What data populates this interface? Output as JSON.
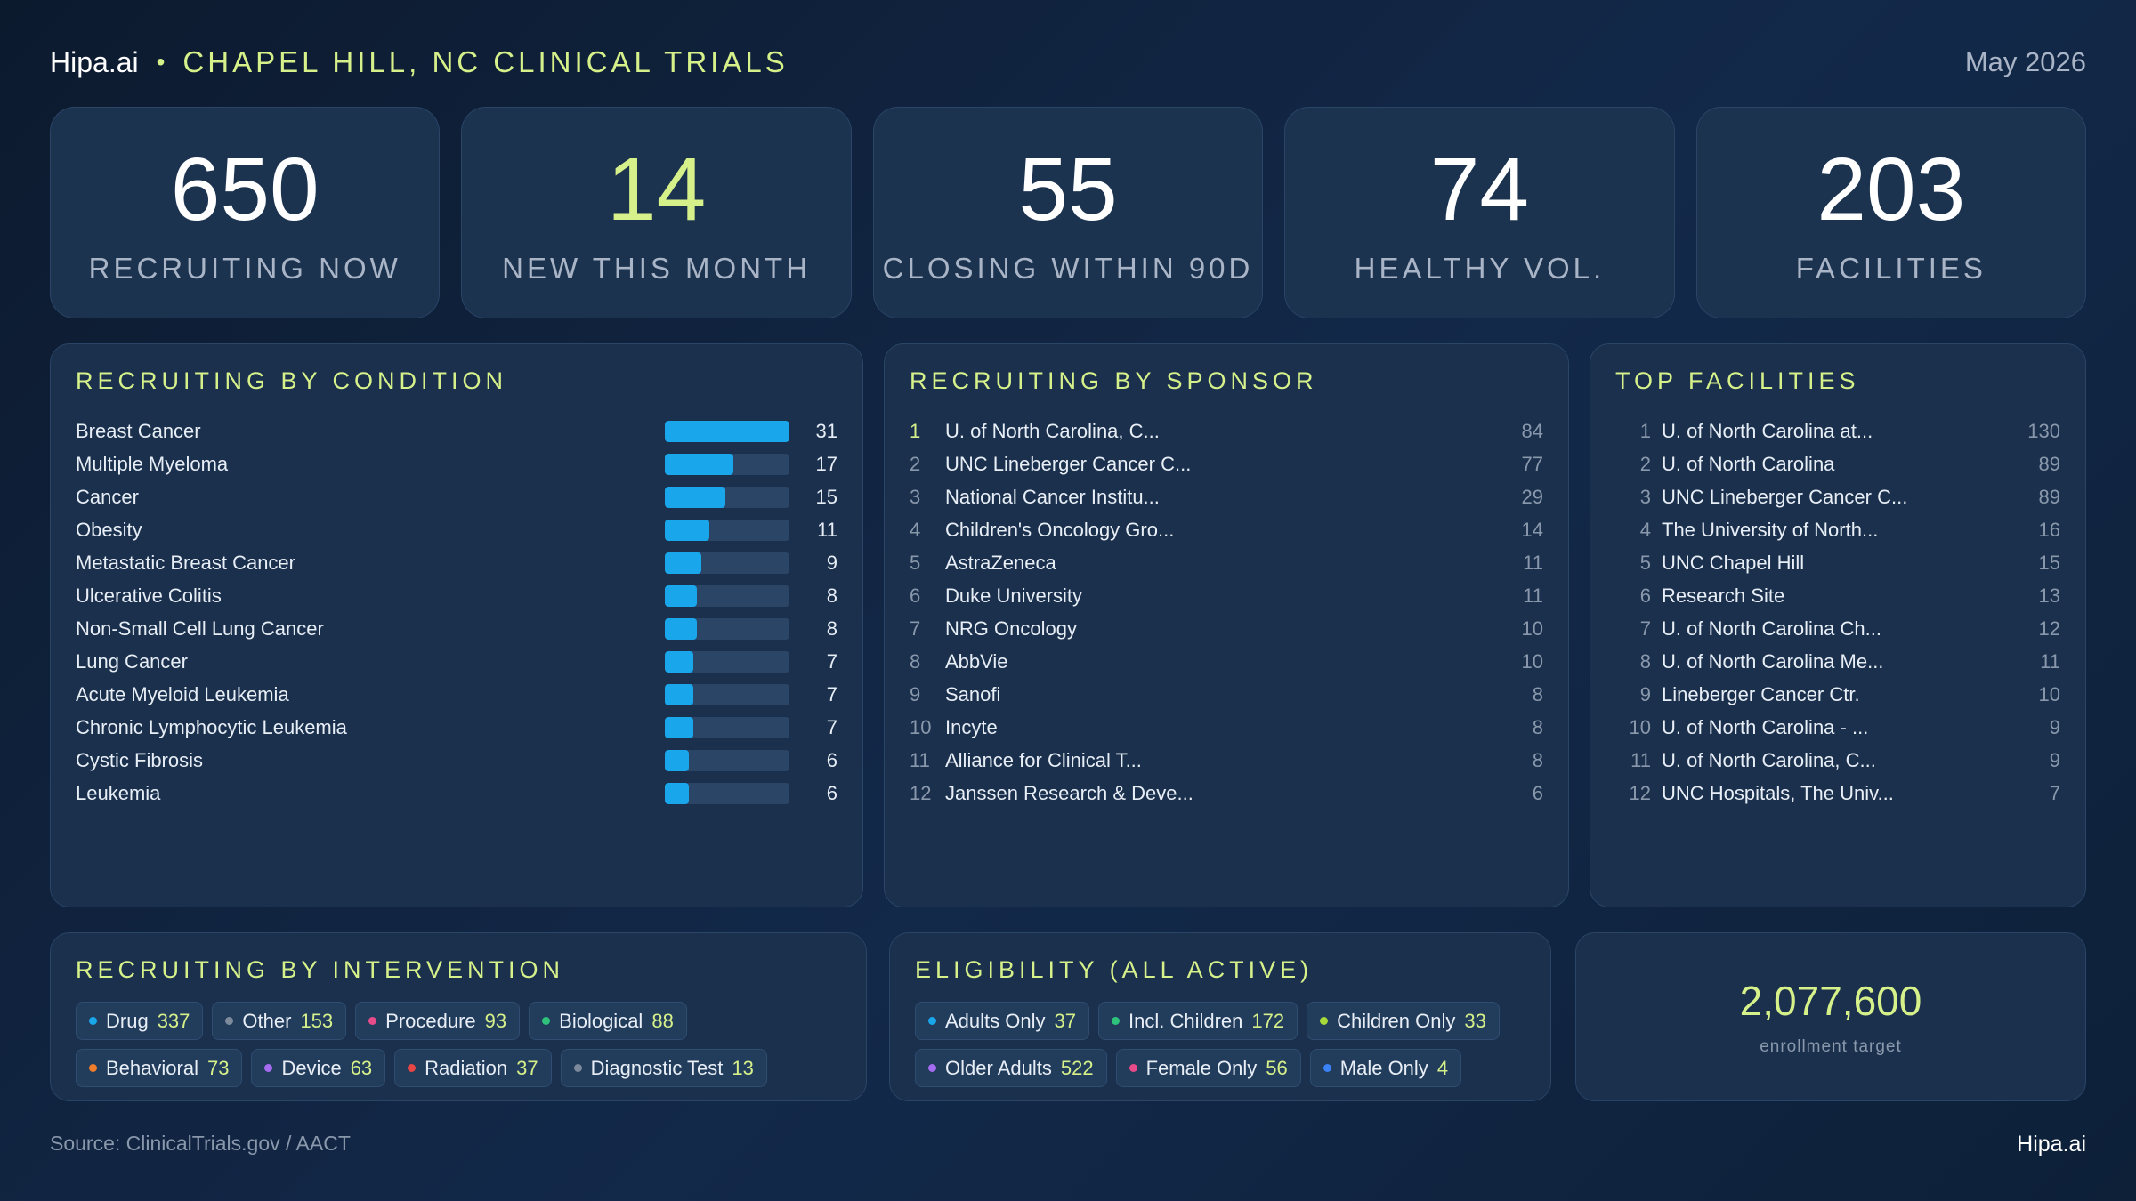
{
  "header": {
    "brand": "Hipa.ai",
    "separator": "•",
    "title": "CHAPEL HILL, NC CLINICAL TRIALS",
    "date": "May 2026"
  },
  "kpis": [
    {
      "value": "650",
      "label": "RECRUITING NOW"
    },
    {
      "value": "14",
      "label": "NEW THIS MONTH"
    },
    {
      "value": "55",
      "label": "CLOSING WITHIN 90D"
    },
    {
      "value": "74",
      "label": "HEALTHY VOL."
    },
    {
      "value": "203",
      "label": "FACILITIES"
    }
  ],
  "conditions": {
    "title": "RECRUITING BY CONDITION",
    "max": 31,
    "items": [
      {
        "name": "Breast Cancer",
        "value": 31
      },
      {
        "name": "Multiple Myeloma",
        "value": 17
      },
      {
        "name": "Cancer",
        "value": 15
      },
      {
        "name": "Obesity",
        "value": 11
      },
      {
        "name": "Metastatic Breast Cancer",
        "value": 9
      },
      {
        "name": "Ulcerative Colitis",
        "value": 8
      },
      {
        "name": "Non-Small Cell Lung Cancer",
        "value": 8
      },
      {
        "name": "Lung Cancer",
        "value": 7
      },
      {
        "name": "Acute Myeloid Leukemia",
        "value": 7
      },
      {
        "name": "Chronic Lymphocytic Leukemia",
        "value": 7
      },
      {
        "name": "Cystic Fibrosis",
        "value": 6
      },
      {
        "name": "Leukemia",
        "value": 6
      }
    ]
  },
  "sponsors": {
    "title": "RECRUITING BY SPONSOR",
    "items": [
      {
        "rank": "1",
        "name": "U. of North Carolina, C...",
        "value": "84"
      },
      {
        "rank": "2",
        "name": "UNC Lineberger Cancer C...",
        "value": "77"
      },
      {
        "rank": "3",
        "name": "National Cancer Institu...",
        "value": "29"
      },
      {
        "rank": "4",
        "name": "Children's Oncology Gro...",
        "value": "14"
      },
      {
        "rank": "5",
        "name": "AstraZeneca",
        "value": "11"
      },
      {
        "rank": "6",
        "name": "Duke University",
        "value": "11"
      },
      {
        "rank": "7",
        "name": "NRG Oncology",
        "value": "10"
      },
      {
        "rank": "8",
        "name": "AbbVie",
        "value": "10"
      },
      {
        "rank": "9",
        "name": "Sanofi",
        "value": "8"
      },
      {
        "rank": "10",
        "name": "Incyte",
        "value": "8"
      },
      {
        "rank": "11",
        "name": "Alliance for Clinical T...",
        "value": "8"
      },
      {
        "rank": "12",
        "name": "Janssen Research & Deve...",
        "value": "6"
      }
    ]
  },
  "facilities": {
    "title": "TOP FACILITIES",
    "items": [
      {
        "rank": "1",
        "name": "U. of North Carolina at...",
        "value": "130"
      },
      {
        "rank": "2",
        "name": "U. of North Carolina",
        "value": "89"
      },
      {
        "rank": "3",
        "name": "UNC Lineberger Cancer C...",
        "value": "89"
      },
      {
        "rank": "4",
        "name": "The University of North...",
        "value": "16"
      },
      {
        "rank": "5",
        "name": "UNC Chapel Hill",
        "value": "15"
      },
      {
        "rank": "6",
        "name": "Research Site",
        "value": "13"
      },
      {
        "rank": "7",
        "name": "U. of North Carolina Ch...",
        "value": "12"
      },
      {
        "rank": "8",
        "name": "U. of North Carolina Me...",
        "value": "11"
      },
      {
        "rank": "9",
        "name": "Lineberger Cancer Ctr.",
        "value": "10"
      },
      {
        "rank": "10",
        "name": "U. of North Carolina - ...",
        "value": "9"
      },
      {
        "rank": "11",
        "name": "U. of North Carolina, C...",
        "value": "9"
      },
      {
        "rank": "12",
        "name": "UNC Hospitals, The Univ...",
        "value": "7"
      }
    ]
  },
  "intervention": {
    "title": "RECRUITING BY INTERVENTION",
    "chips": [
      {
        "label": "Drug",
        "value": "337",
        "color": "#1aa6ea"
      },
      {
        "label": "Other",
        "value": "153",
        "color": "#7d8a9c"
      },
      {
        "label": "Procedure",
        "value": "93",
        "color": "#e84b8a"
      },
      {
        "label": "Biological",
        "value": "88",
        "color": "#2fc27a"
      },
      {
        "label": "Behavioral",
        "value": "73",
        "color": "#f07d2b"
      },
      {
        "label": "Device",
        "value": "63",
        "color": "#a56cf0"
      },
      {
        "label": "Radiation",
        "value": "37",
        "color": "#e84545"
      },
      {
        "label": "Diagnostic Test",
        "value": "13",
        "color": "#7d8a9c"
      }
    ]
  },
  "eligibility": {
    "title": "ELIGIBILITY (ALL ACTIVE)",
    "chips": [
      {
        "label": "Adults Only",
        "value": "37",
        "color": "#1aa6ea"
      },
      {
        "label": "Incl. Children",
        "value": "172",
        "color": "#2fc27a"
      },
      {
        "label": "Children Only",
        "value": "33",
        "color": "#a6d93a"
      },
      {
        "label": "Older Adults",
        "value": "522",
        "color": "#a56cf0"
      },
      {
        "label": "Female Only",
        "value": "56",
        "color": "#e84b8a"
      },
      {
        "label": "Male Only",
        "value": "4",
        "color": "#3b82f6"
      }
    ]
  },
  "enrollment": {
    "value": "2,077,600",
    "label": "enrollment target"
  },
  "footer": {
    "source": "Source: ClinicalTrials.gov /  AACT",
    "brand": "Hipa.ai"
  }
}
